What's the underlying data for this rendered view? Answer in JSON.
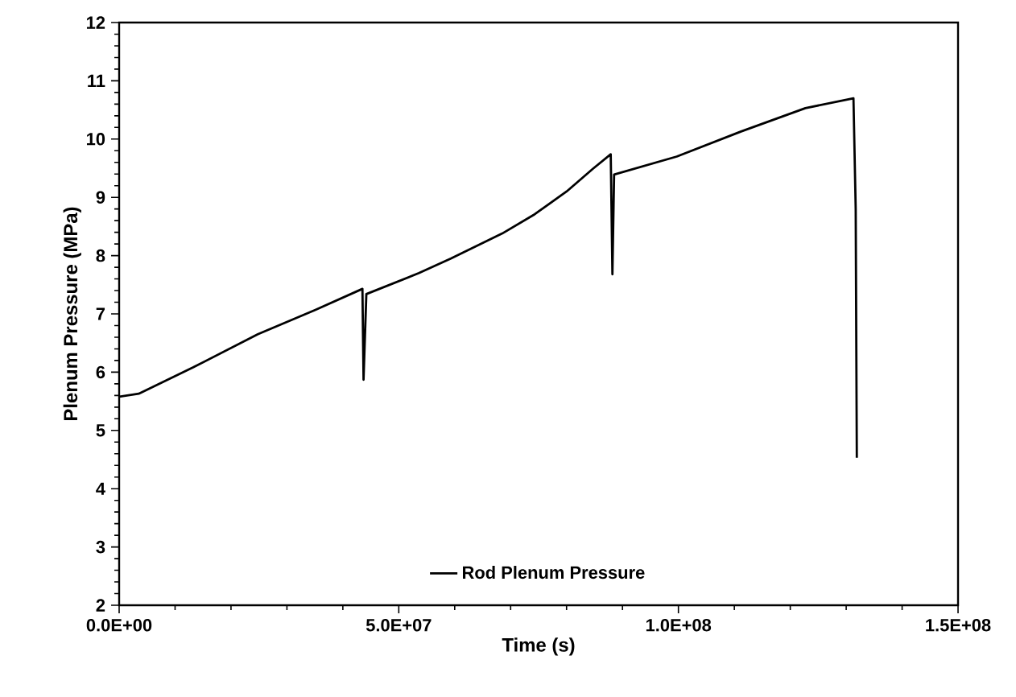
{
  "chart_data": {
    "type": "line",
    "xlabel": "Time (s)",
    "ylabel": "Plenum Pressure (MPa)",
    "xlim": [
      0,
      150000000
    ],
    "ylim": [
      2,
      12
    ],
    "xticks": [
      {
        "value": 0,
        "label": "0.0E+00"
      },
      {
        "value": 50000000,
        "label": "5.0E+07"
      },
      {
        "value": 100000000,
        "label": "1.0E+08"
      },
      {
        "value": 150000000,
        "label": "1.5E+08"
      }
    ],
    "yticks": [
      2,
      3,
      4,
      5,
      6,
      7,
      8,
      9,
      10,
      11,
      12
    ],
    "legend": "bottom",
    "marker": "none",
    "line_style": "solid",
    "grid": false,
    "series": [
      {
        "name": "Rod Plenum Pressure",
        "color": "#000000",
        "x": [
          0,
          3500000,
          13200000,
          24800000,
          35100000,
          43500000,
          43700000,
          44200000,
          53600000,
          59300000,
          68500000,
          74300000,
          80000000,
          84700000,
          87900000,
          88200000,
          88500000,
          99700000,
          111200000,
          122700000,
          131300000,
          131700000,
          131900000
        ],
        "values": [
          5.58,
          5.63,
          6.08,
          6.65,
          7.07,
          7.43,
          5.87,
          7.34,
          7.7,
          7.95,
          8.38,
          8.71,
          9.1,
          9.49,
          9.74,
          7.68,
          9.39,
          9.7,
          10.13,
          10.53,
          10.7,
          8.8,
          4.53
        ]
      }
    ]
  }
}
